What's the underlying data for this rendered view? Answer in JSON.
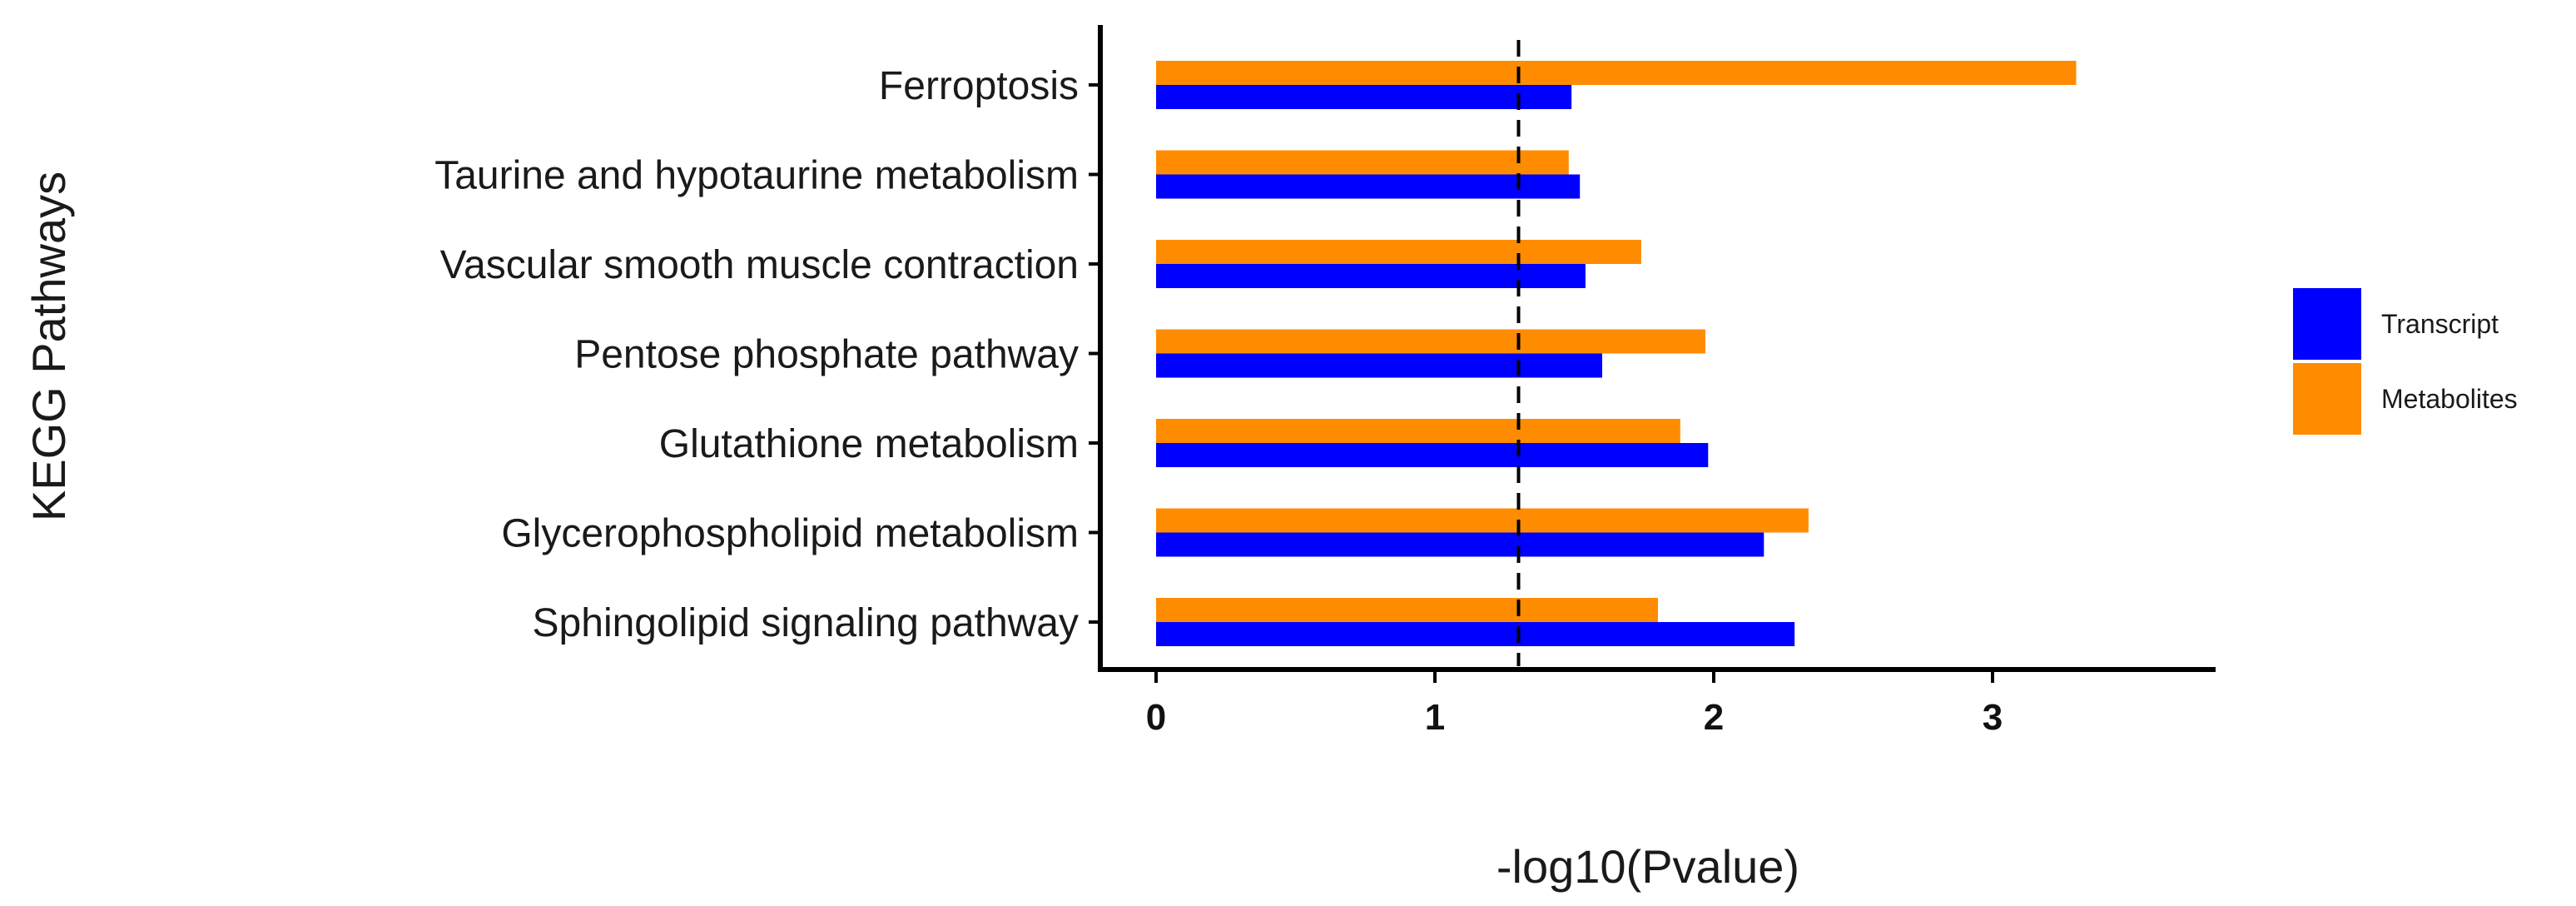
{
  "chart_data": {
    "type": "bar",
    "orientation": "horizontal",
    "title": "",
    "xlabel": "-log10(Pvalue)",
    "ylabel": "KEGG Pathways",
    "categories": [
      "Ferroptosis",
      "Taurine and hypotaurine metabolism",
      "Vascular smooth muscle contraction",
      "Pentose phosphate pathway",
      "Glutathione metabolism",
      "Glycerophospholipid metabolism",
      "Sphingolipid signaling pathway"
    ],
    "series": [
      {
        "name": "Metabolites",
        "color": "#FF8C00",
        "values": [
          3.3,
          1.48,
          1.74,
          1.97,
          1.88,
          2.34,
          1.8
        ]
      },
      {
        "name": "Transcript",
        "color": "#0000FF",
        "values": [
          1.49,
          1.52,
          1.54,
          1.6,
          1.98,
          2.18,
          2.29
        ]
      }
    ],
    "xlim": [
      -0.2,
      3.8
    ],
    "xticks": [
      0,
      1,
      2,
      3
    ],
    "reference_line": {
      "x": 1.3,
      "style": "dashed"
    },
    "grid": false,
    "legend": {
      "position": "right",
      "entries": [
        {
          "label": "Transcript",
          "color": "#0000FF"
        },
        {
          "label": "Metabolites",
          "color": "#FF8C00"
        }
      ]
    }
  }
}
